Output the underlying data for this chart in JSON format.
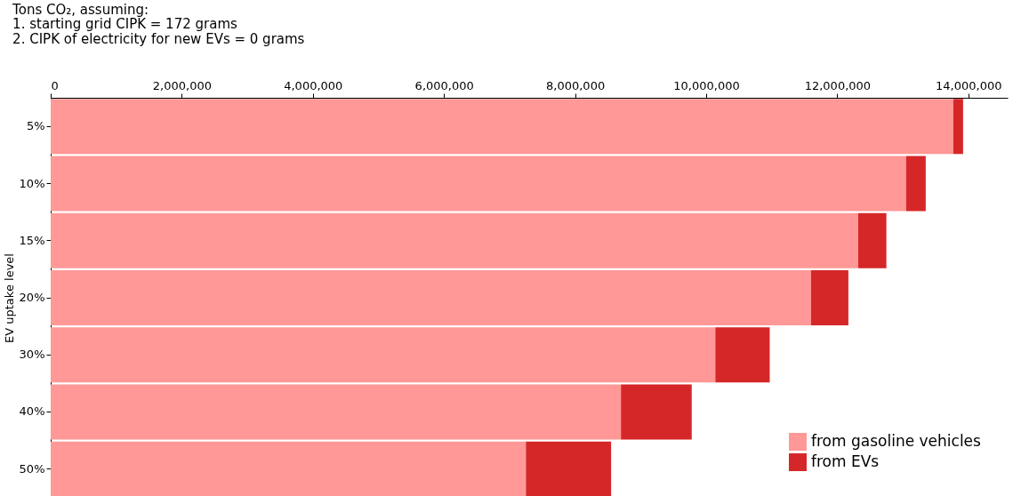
{
  "chart_data": {
    "type": "bar",
    "orientation": "horizontal",
    "stacked": true,
    "title": "Tons CO₂, assuming:",
    "subtitle": "1. starting grid CIPK = 172 grams\n2. CIPK of electricity for new EVs = 0 grams",
    "ylabel": "EV uptake level",
    "categories": [
      "5%",
      "10%",
      "15%",
      "20%",
      "30%",
      "40%",
      "50%"
    ],
    "series": [
      {
        "name": "from gasoline vehicles",
        "color": "#ff9896",
        "values": [
          13770000,
          13050000,
          12320000,
          11600000,
          10140000,
          8700000,
          7250000
        ]
      },
      {
        "name": "from EVs",
        "color": "#d62728",
        "values": [
          150000,
          300000,
          430000,
          570000,
          830000,
          1080000,
          1300000
        ]
      }
    ],
    "xlim": [
      0,
      14600000
    ],
    "xticks": [
      0,
      {
        "value": 2000000,
        "label": "2,000,000"
      },
      {
        "value": 4000000,
        "label": "4,000,000"
      },
      {
        "value": 6000000,
        "label": "6,000,000"
      },
      {
        "value": 8000000,
        "label": "8,000,000"
      },
      {
        "value": 10000000,
        "label": "10,000,000"
      },
      {
        "value": 12000000,
        "label": "12,000,000"
      },
      {
        "value": 14000000,
        "label": "14,000,000"
      }
    ],
    "grid": false,
    "legend": "bottom right"
  }
}
